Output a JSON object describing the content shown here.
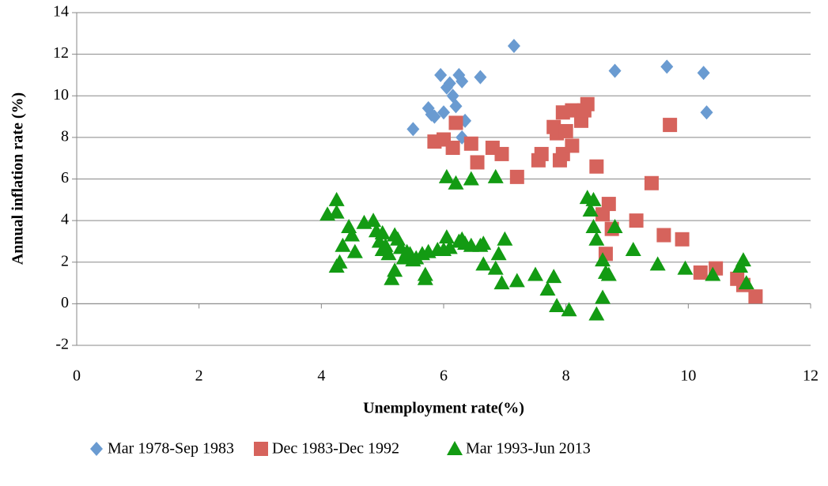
{
  "chart_data": {
    "type": "scatter",
    "x_label": "Unemployment rate(%)",
    "y_label": "Annual inflation rate (%)",
    "xlim": [
      0,
      12
    ],
    "xticks": [
      0,
      2,
      4,
      6,
      8,
      10,
      12
    ],
    "ylim": [
      -2,
      14
    ],
    "yticks": [
      -2,
      0,
      2,
      4,
      6,
      8,
      10,
      12,
      14
    ],
    "grid": true,
    "legend": "bottom",
    "series": [
      {
        "name": "Mar 1978-Sep 1983",
        "color": "#6a9bd1",
        "marker": "diamond",
        "x": [
          5.5,
          5.75,
          5.8,
          5.85,
          5.95,
          6.0,
          6.05,
          6.1,
          6.15,
          6.2,
          6.25,
          6.3,
          6.35,
          6.3,
          6.6,
          7.15,
          8.8,
          9.65,
          10.25,
          10.3
        ],
        "values": [
          8.4,
          9.4,
          9.1,
          9.0,
          11.0,
          9.2,
          10.4,
          10.6,
          10.0,
          9.5,
          11.0,
          10.7,
          8.8,
          8.0,
          10.9,
          12.4,
          11.2,
          11.4,
          11.1,
          9.2
        ]
      },
      {
        "name": "Dec 1983-Dec 1992",
        "color": "#d6635c",
        "marker": "square",
        "x": [
          5.85,
          6.0,
          6.15,
          6.2,
          6.45,
          6.55,
          6.8,
          6.95,
          7.2,
          7.55,
          7.6,
          7.8,
          7.85,
          7.9,
          7.95,
          7.95,
          8.1,
          8.1,
          8.0,
          8.25,
          8.3,
          8.35,
          8.5,
          8.6,
          8.65,
          8.7,
          8.75,
          9.15,
          9.4,
          9.6,
          9.7,
          9.9,
          10.2,
          10.45,
          10.8,
          10.9,
          11.1
        ],
        "values": [
          7.8,
          7.9,
          7.5,
          8.7,
          7.7,
          6.8,
          7.5,
          7.2,
          6.1,
          6.9,
          7.2,
          8.5,
          8.2,
          6.9,
          7.2,
          9.2,
          9.3,
          7.6,
          8.3,
          8.8,
          9.3,
          9.6,
          6.6,
          4.3,
          2.4,
          4.8,
          3.6,
          4.0,
          5.8,
          3.3,
          8.6,
          3.1,
          1.5,
          1.7,
          1.2,
          0.9,
          0.35
        ]
      },
      {
        "name": "Mar 1993-Jun 2013",
        "color": "#139b13",
        "marker": "triangle",
        "x": [
          4.1,
          4.25,
          4.25,
          4.25,
          4.3,
          4.35,
          4.45,
          4.5,
          4.55,
          4.7,
          4.85,
          4.9,
          4.95,
          5.0,
          5.0,
          5.05,
          5.1,
          5.15,
          5.2,
          5.2,
          5.25,
          5.3,
          5.35,
          5.4,
          5.45,
          5.5,
          5.55,
          5.65,
          5.7,
          5.7,
          5.75,
          5.9,
          6.0,
          6.05,
          6.05,
          6.1,
          6.2,
          6.25,
          6.3,
          6.35,
          6.45,
          6.45,
          6.6,
          6.65,
          6.65,
          6.85,
          6.85,
          6.9,
          6.95,
          7.0,
          7.2,
          7.5,
          7.7,
          7.8,
          7.85,
          8.05,
          8.35,
          8.4,
          8.45,
          8.45,
          8.5,
          8.5,
          8.6,
          8.6,
          8.65,
          8.7,
          8.8,
          9.1,
          9.5,
          9.95,
          10.4,
          10.85,
          10.9,
          10.95
        ],
        "values": [
          4.3,
          5.0,
          4.4,
          1.8,
          2.0,
          2.8,
          3.7,
          3.3,
          2.5,
          3.9,
          4.0,
          3.5,
          3.0,
          3.4,
          2.6,
          2.8,
          2.4,
          1.2,
          1.6,
          3.3,
          3.1,
          2.7,
          2.2,
          2.5,
          2.4,
          2.1,
          2.2,
          2.4,
          1.4,
          1.2,
          2.5,
          2.6,
          2.6,
          3.2,
          6.1,
          2.7,
          5.8,
          3.0,
          3.1,
          2.9,
          6.0,
          2.8,
          2.8,
          1.9,
          2.9,
          6.1,
          1.7,
          2.4,
          1.0,
          3.1,
          1.1,
          1.4,
          0.7,
          1.3,
          -0.1,
          -0.3,
          5.1,
          4.5,
          5.0,
          3.7,
          3.1,
          -0.5,
          0.3,
          2.1,
          1.5,
          1.4,
          3.7,
          2.6,
          1.9,
          1.7,
          1.4,
          1.8,
          2.1,
          1.0
        ]
      }
    ]
  }
}
